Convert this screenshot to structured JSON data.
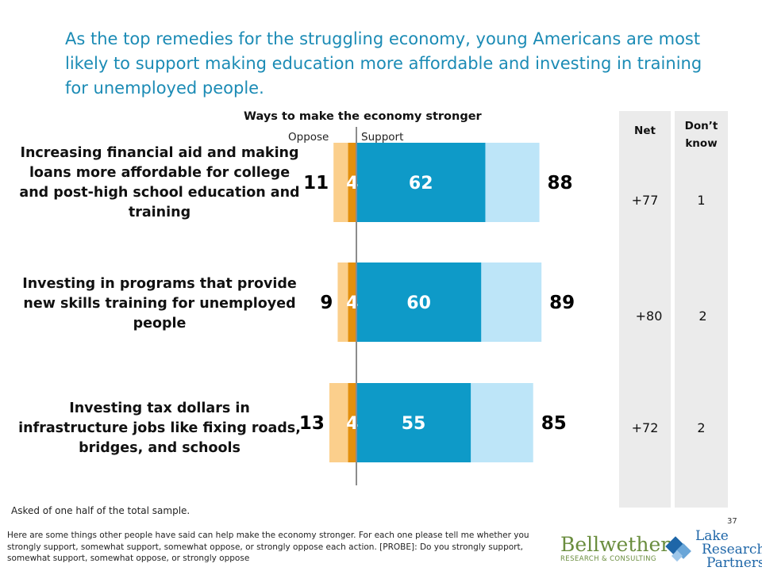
{
  "slide": {
    "title": "As the top remedies for the struggling economy, young Americans are most likely to support making education more affordable and investing in training for unemployed people.",
    "note": "Asked of one half of the total sample.",
    "footnote": "Here are some things other people have said can help make the economy stronger.  For each one please tell me whether you strongly support, somewhat support, somewhat oppose, or strongly oppose each action. [PROBE]: Do you strongly support, somewhat support, somewhat oppose, or strongly oppose",
    "page_number": "37",
    "logo_bellwether": "Bellwether",
    "logo_bellwether_sub": "RESEARCH & CONSULTING",
    "logo_lake_line1": "Lake",
    "logo_lake_line2": "Research",
    "logo_lake_line3": "Partners"
  },
  "columns": {
    "net_header": "Net",
    "dontknow_header_line1": "Don’t",
    "dontknow_header_line2": "know"
  },
  "colors": {
    "title": "#1b8bb5",
    "strong_support": "#0e9ac8",
    "somewhat_support": "#bde5f8",
    "strong_oppose": "#e3900e",
    "somewhat_oppose": "#fbcf8c"
  },
  "chart_data": {
    "type": "bar",
    "title": "Ways to make  the economy stronger",
    "oppose_label": "Oppose",
    "support_label": "Support",
    "categories": [
      "Increasing financial aid and making loans more affordable for college and post-high school education and training",
      "Investing in programs that provide new skills training for unemployed people",
      "Investing tax dollars in infrastructure jobs like fixing roads, bridges, and schools"
    ],
    "rows": [
      {
        "total_oppose": 11,
        "strong_oppose": 4,
        "strong_support": 62,
        "total_support": 88,
        "net": "+77",
        "dont_know": "1"
      },
      {
        "total_oppose": 9,
        "strong_oppose": 4,
        "strong_support": 60,
        "total_support": 89,
        "net": "+80",
        "dont_know": "2"
      },
      {
        "total_oppose": 13,
        "strong_oppose": 4,
        "strong_support": 55,
        "total_support": 85,
        "net": "+72",
        "dont_know": "2"
      }
    ]
  }
}
